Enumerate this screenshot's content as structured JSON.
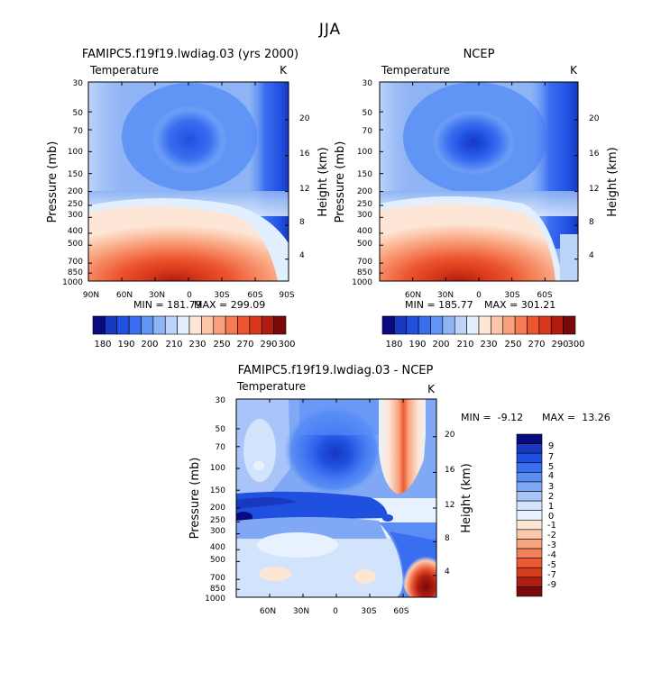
{
  "figure": {
    "title": "JJA"
  },
  "colorbar_abs": {
    "colors": [
      "#0a0a80",
      "#1838c0",
      "#2050e0",
      "#3a6ef0",
      "#6094f5",
      "#8fb4f5",
      "#bcd4f8",
      "#e2efff",
      "#fde6d6",
      "#fcc5a8",
      "#f9a07c",
      "#f47b54",
      "#ec5530",
      "#d8381b",
      "#b01c10",
      "#7a0a0a"
    ],
    "labels": [
      "180",
      "190",
      "200",
      "210",
      "230",
      "250",
      "270",
      "290",
      "300"
    ]
  },
  "colorbar_diff": {
    "colors": [
      "#0a0a80",
      "#1838c0",
      "#2050e0",
      "#3a6ef0",
      "#5a8ef5",
      "#80a8f5",
      "#a8c4f8",
      "#d2e4fc",
      "#e8f2ff",
      "#fde6d6",
      "#fcc8ac",
      "#f9a582",
      "#f4805a",
      "#ec5a34",
      "#d63c1e",
      "#b01e12",
      "#7a0a0a"
    ],
    "labels": [
      "9",
      "7",
      "5",
      "4",
      "3",
      "2",
      "1",
      "0",
      "-1",
      "-2",
      "-3",
      "-4",
      "-5",
      "-7",
      "-9"
    ]
  },
  "chart_data": [
    {
      "type": "heatmap",
      "title": "FAMIPC5.f19f19.lwdiag.03 (yrs 2000)",
      "subtitle": "Temperature",
      "units": "K",
      "ylabel": "Pressure (mb)",
      "ylabel_right": "Height (km)",
      "x_ticks": [
        "90N",
        "60N",
        "30N",
        "0",
        "30S",
        "60S",
        "90S"
      ],
      "y_ticks": [
        "30",
        "50",
        "70",
        "100",
        "150",
        "200",
        "250",
        "300",
        "400",
        "500",
        "700",
        "850",
        "1000"
      ],
      "height_ticks": [
        "20",
        "16",
        "12",
        "8",
        "4"
      ],
      "min_label": "MIN = 181.79",
      "max_label": "MAX = 299.09",
      "min": 181.79,
      "max": 299.09,
      "xlim": [
        90,
        -90
      ],
      "ylim": [
        1000,
        30
      ]
    },
    {
      "type": "heatmap",
      "title": "NCEP",
      "subtitle": "Temperature",
      "units": "K",
      "ylabel": "Pressure (mb)",
      "ylabel_right": "Height (km)",
      "x_ticks": [
        "60N",
        "30N",
        "0",
        "30S",
        "60S"
      ],
      "y_ticks": [
        "30",
        "50",
        "70",
        "100",
        "150",
        "200",
        "250",
        "300",
        "400",
        "500",
        "700",
        "850",
        "1000"
      ],
      "height_ticks": [
        "20",
        "16",
        "12",
        "8",
        "4"
      ],
      "min_label": "MIN = 185.77",
      "max_label": "MAX = 301.21",
      "min": 185.77,
      "max": 301.21,
      "xlim": [
        90,
        -90
      ],
      "ylim": [
        1000,
        30
      ]
    },
    {
      "type": "heatmap",
      "title": "FAMIPC5.f19f19.lwdiag.03 - NCEP",
      "subtitle": "Temperature",
      "units": "K",
      "ylabel": "Pressure (mb)",
      "ylabel_right": "Height (km)",
      "x_ticks": [
        "60N",
        "30N",
        "0",
        "30S",
        "60S"
      ],
      "y_ticks": [
        "30",
        "50",
        "70",
        "100",
        "150",
        "200",
        "250",
        "300",
        "400",
        "500",
        "700",
        "850",
        "1000"
      ],
      "height_ticks": [
        "20",
        "16",
        "12",
        "8",
        "4"
      ],
      "min_label": "MIN =  -9.12",
      "max_label": "MAX =  13.26",
      "min": -9.12,
      "max": 13.26,
      "xlim": [
        90,
        -90
      ],
      "ylim": [
        1000,
        30
      ]
    }
  ]
}
